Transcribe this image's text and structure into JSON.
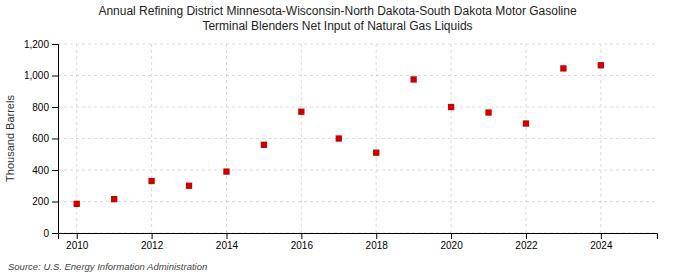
{
  "chart_data": {
    "type": "scatter",
    "title": "Annual Refining District Minnesota-Wisconsin-North Dakota-South Dakota Motor Gasoline\nTerminal Blenders Net Input of Natural Gas Liquids",
    "ylabel": "Thousand Barrels",
    "source": "Source: U.S. Energy Information Administration",
    "x": [
      2010,
      2011,
      2012,
      2013,
      2014,
      2015,
      2016,
      2017,
      2018,
      2019,
      2020,
      2021,
      2022,
      2023,
      2024
    ],
    "values": [
      185,
      215,
      330,
      300,
      390,
      560,
      770,
      600,
      510,
      975,
      800,
      765,
      695,
      1045,
      1065
    ],
    "color": "#cc0000",
    "marker": "square",
    "xlim": [
      2009.5,
      2025.5
    ],
    "xticks": [
      2010,
      2012,
      2014,
      2016,
      2018,
      2020,
      2022,
      2024
    ],
    "ylim": [
      0,
      1200
    ],
    "yticks": [
      0,
      200,
      400,
      600,
      800,
      {
        "value": 1000,
        "label": "1,000"
      },
      {
        "value": 1200,
        "label": "1,200"
      }
    ],
    "grid": true
  }
}
